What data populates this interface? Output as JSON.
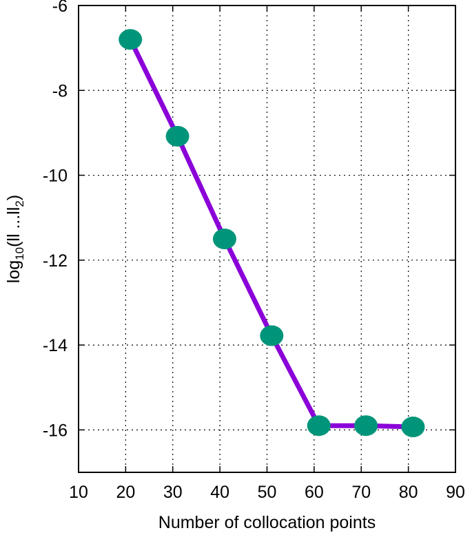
{
  "chart_data": {
    "type": "line",
    "title": "",
    "xlabel": "Number of collocation points",
    "ylabel": {
      "prefix": "log",
      "sub1": "10",
      "mid": "(ll ...ll",
      "sub2": "2",
      "suffix": ")"
    },
    "xlim": [
      10,
      90
    ],
    "ylim": [
      -17,
      -6
    ],
    "xticks": [
      10,
      20,
      30,
      40,
      50,
      60,
      70,
      80,
      90
    ],
    "xtick_labels": [
      "10",
      "20",
      "30",
      "40",
      "50",
      "60",
      "70",
      "80",
      "90"
    ],
    "yticks": [
      -16,
      -14,
      -12,
      -10,
      -8,
      -6
    ],
    "ytick_labels": [
      "-16",
      "-14",
      "-12",
      "-10",
      "-8",
      "-6"
    ],
    "grid": true,
    "series": [
      {
        "x": [
          21,
          31,
          41,
          51,
          61,
          71,
          81
        ],
        "y": [
          -6.8,
          -9.08,
          -11.5,
          -13.78,
          -15.9,
          -15.9,
          -15.93
        ],
        "line_color": "#8b00d8",
        "marker_color": "#00957a"
      }
    ]
  }
}
